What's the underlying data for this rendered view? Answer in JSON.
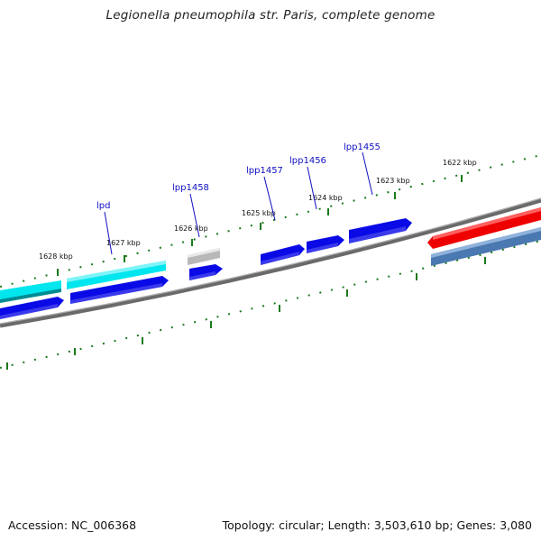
{
  "title": "Legionella pneumophila str. Paris, complete genome",
  "footer": {
    "accession": "Accession: NC_006368",
    "topology": "Topology: circular; Length: 3,503,610 bp; Genes: 3,080"
  },
  "ticks": [
    {
      "label": "1628 kbp"
    },
    {
      "label": "1627 kbp"
    },
    {
      "label": "1626 kbp"
    },
    {
      "label": "1625 kbp"
    },
    {
      "label": "1624 kbp"
    },
    {
      "label": "1623 kbp"
    },
    {
      "label": "1622 kbp"
    }
  ],
  "genes": [
    {
      "label": "lpd"
    },
    {
      "label": "lpp1458"
    },
    {
      "label": "lpp1457"
    },
    {
      "label": "lpp1456"
    },
    {
      "label": "lpp1455"
    }
  ],
  "colors": {
    "backbone": "#808080",
    "ticks": "#1a7a1a",
    "cds": "#0a0ae6",
    "cyan": "#00e0e8",
    "grey": "#b4b4b4",
    "red": "#ee0000",
    "steel": "#4a78b0",
    "label": "#1010c0"
  }
}
